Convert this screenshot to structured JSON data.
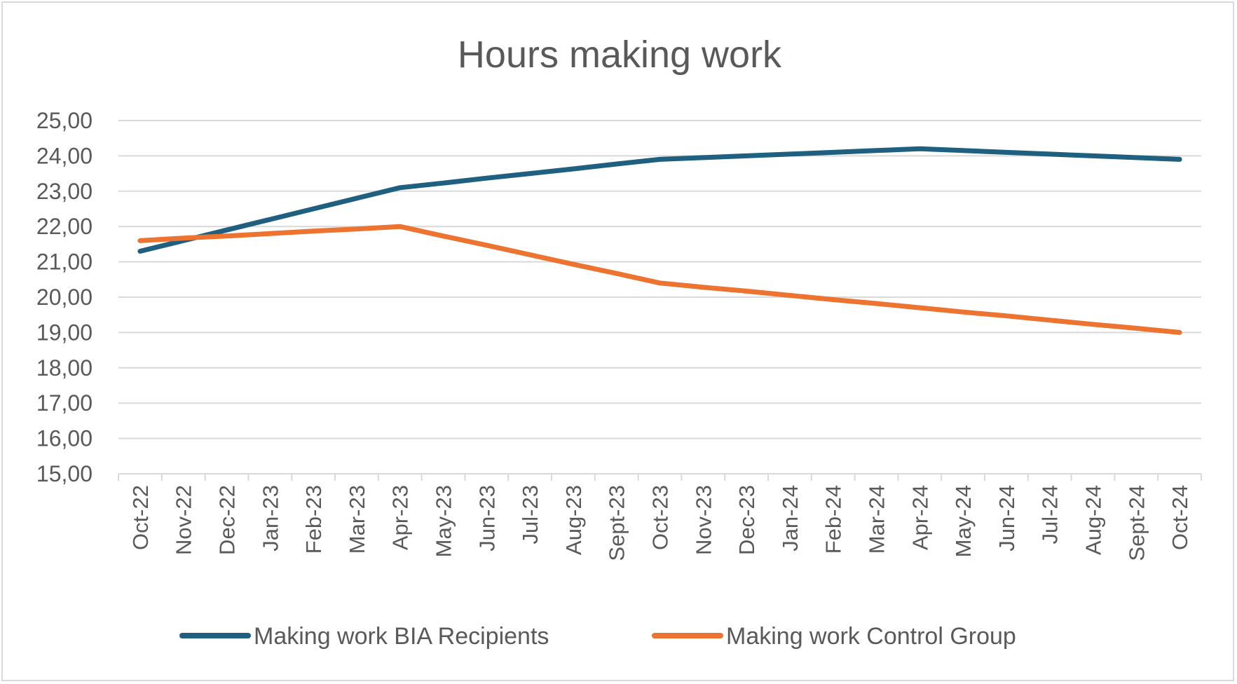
{
  "chart_data": {
    "type": "line",
    "title": "Hours making work",
    "xlabel": "",
    "ylabel": "",
    "categories": [
      "Oct-22",
      "Nov-22",
      "Dec-22",
      "Jan-23",
      "Feb-23",
      "Mar-23",
      "Apr-23",
      "May-23",
      "Jun-23",
      "Jul-23",
      "Aug-23",
      "Sept-23",
      "Oct-23",
      "Nov-23",
      "Dec-23",
      "Jan-24",
      "Feb-24",
      "Mar-24",
      "Apr-24",
      "May-24",
      "Jun-24",
      "Jul-24",
      "Aug-24",
      "Sept-24",
      "Oct-24"
    ],
    "y_tick_labels": [
      "15,00",
      "16,00",
      "17,00",
      "18,00",
      "19,00",
      "20,00",
      "21,00",
      "22,00",
      "23,00",
      "24,00",
      "25,00"
    ],
    "ylim": [
      15,
      25
    ],
    "grid": true,
    "legend_position": "bottom",
    "series": [
      {
        "name": "Making work BIA Recipients",
        "color": "#1f5f7f",
        "values": [
          21.3,
          21.6,
          21.9,
          22.2,
          22.5,
          22.8,
          23.1,
          23.23,
          23.37,
          23.5,
          23.63,
          23.77,
          23.9,
          23.95,
          24.0,
          24.05,
          24.1,
          24.15,
          24.2,
          24.15,
          24.1,
          24.05,
          24.0,
          23.95,
          23.9
        ]
      },
      {
        "name": "Making work Control Group",
        "color": "#ed7331",
        "values": [
          21.6,
          21.67,
          21.73,
          21.8,
          21.87,
          21.93,
          22.0,
          21.73,
          21.47,
          21.2,
          20.93,
          20.67,
          20.4,
          20.28,
          20.17,
          20.05,
          19.93,
          19.82,
          19.7,
          19.58,
          19.47,
          19.35,
          19.23,
          19.12,
          19.0
        ]
      }
    ]
  }
}
